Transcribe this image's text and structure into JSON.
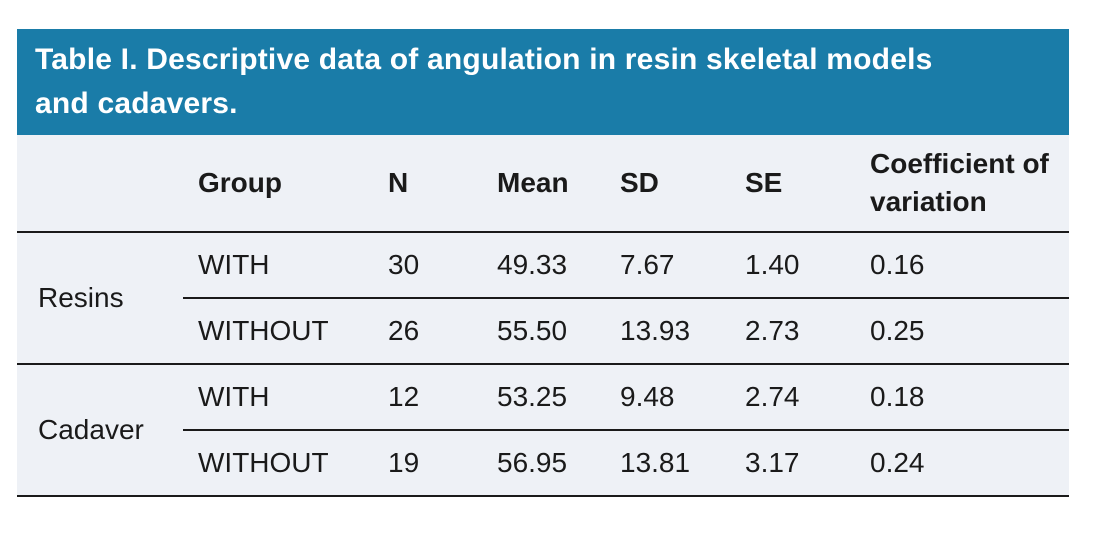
{
  "header": {
    "title": "Table I. Descriptive data of angulation in resin skeletal models and cadavers."
  },
  "columns": {
    "label": "",
    "group": "Group",
    "n": "N",
    "mean": "Mean",
    "sd": "SD",
    "se": "SE",
    "cov": "Coefficient of variation"
  },
  "groups": [
    {
      "label": "Resins",
      "rows": [
        {
          "group": "WITH",
          "n": "30",
          "mean": "49.33",
          "sd": "7.67",
          "se": "1.40",
          "cov": "0.16"
        },
        {
          "group": "WITHOUT",
          "n": "26",
          "mean": "55.50",
          "sd": "13.93",
          "se": "2.73",
          "cov": "0.25"
        }
      ]
    },
    {
      "label": "Cadaver",
      "rows": [
        {
          "group": "WITH",
          "n": "12",
          "mean": "53.25",
          "sd": "9.48",
          "se": "2.74",
          "cov": "0.18"
        },
        {
          "group": "WITHOUT",
          "n": "19",
          "mean": "56.95",
          "sd": "13.81",
          "se": "3.17",
          "cov": "0.24"
        }
      ]
    }
  ],
  "colors": {
    "header_bg": "#1a7ca8",
    "body_bg": "#eef1f6",
    "rule": "#1a1a1a",
    "text": "#1a1a1a",
    "title_text": "#ffffff"
  },
  "chart_data": {
    "type": "table",
    "title": "Table I. Descriptive data of angulation in resin skeletal models and cadavers.",
    "columns": [
      "",
      "Group",
      "N",
      "Mean",
      "SD",
      "SE",
      "Coefficient of variation"
    ],
    "rows": [
      [
        "Resins",
        "WITH",
        30,
        49.33,
        7.67,
        1.4,
        0.16
      ],
      [
        "Resins",
        "WITHOUT",
        26,
        55.5,
        13.93,
        2.73,
        0.25
      ],
      [
        "Cadaver",
        "WITH",
        12,
        53.25,
        9.48,
        2.74,
        0.18
      ],
      [
        "Cadaver",
        "WITHOUT",
        19,
        56.95,
        13.81,
        3.17,
        0.24
      ]
    ]
  }
}
